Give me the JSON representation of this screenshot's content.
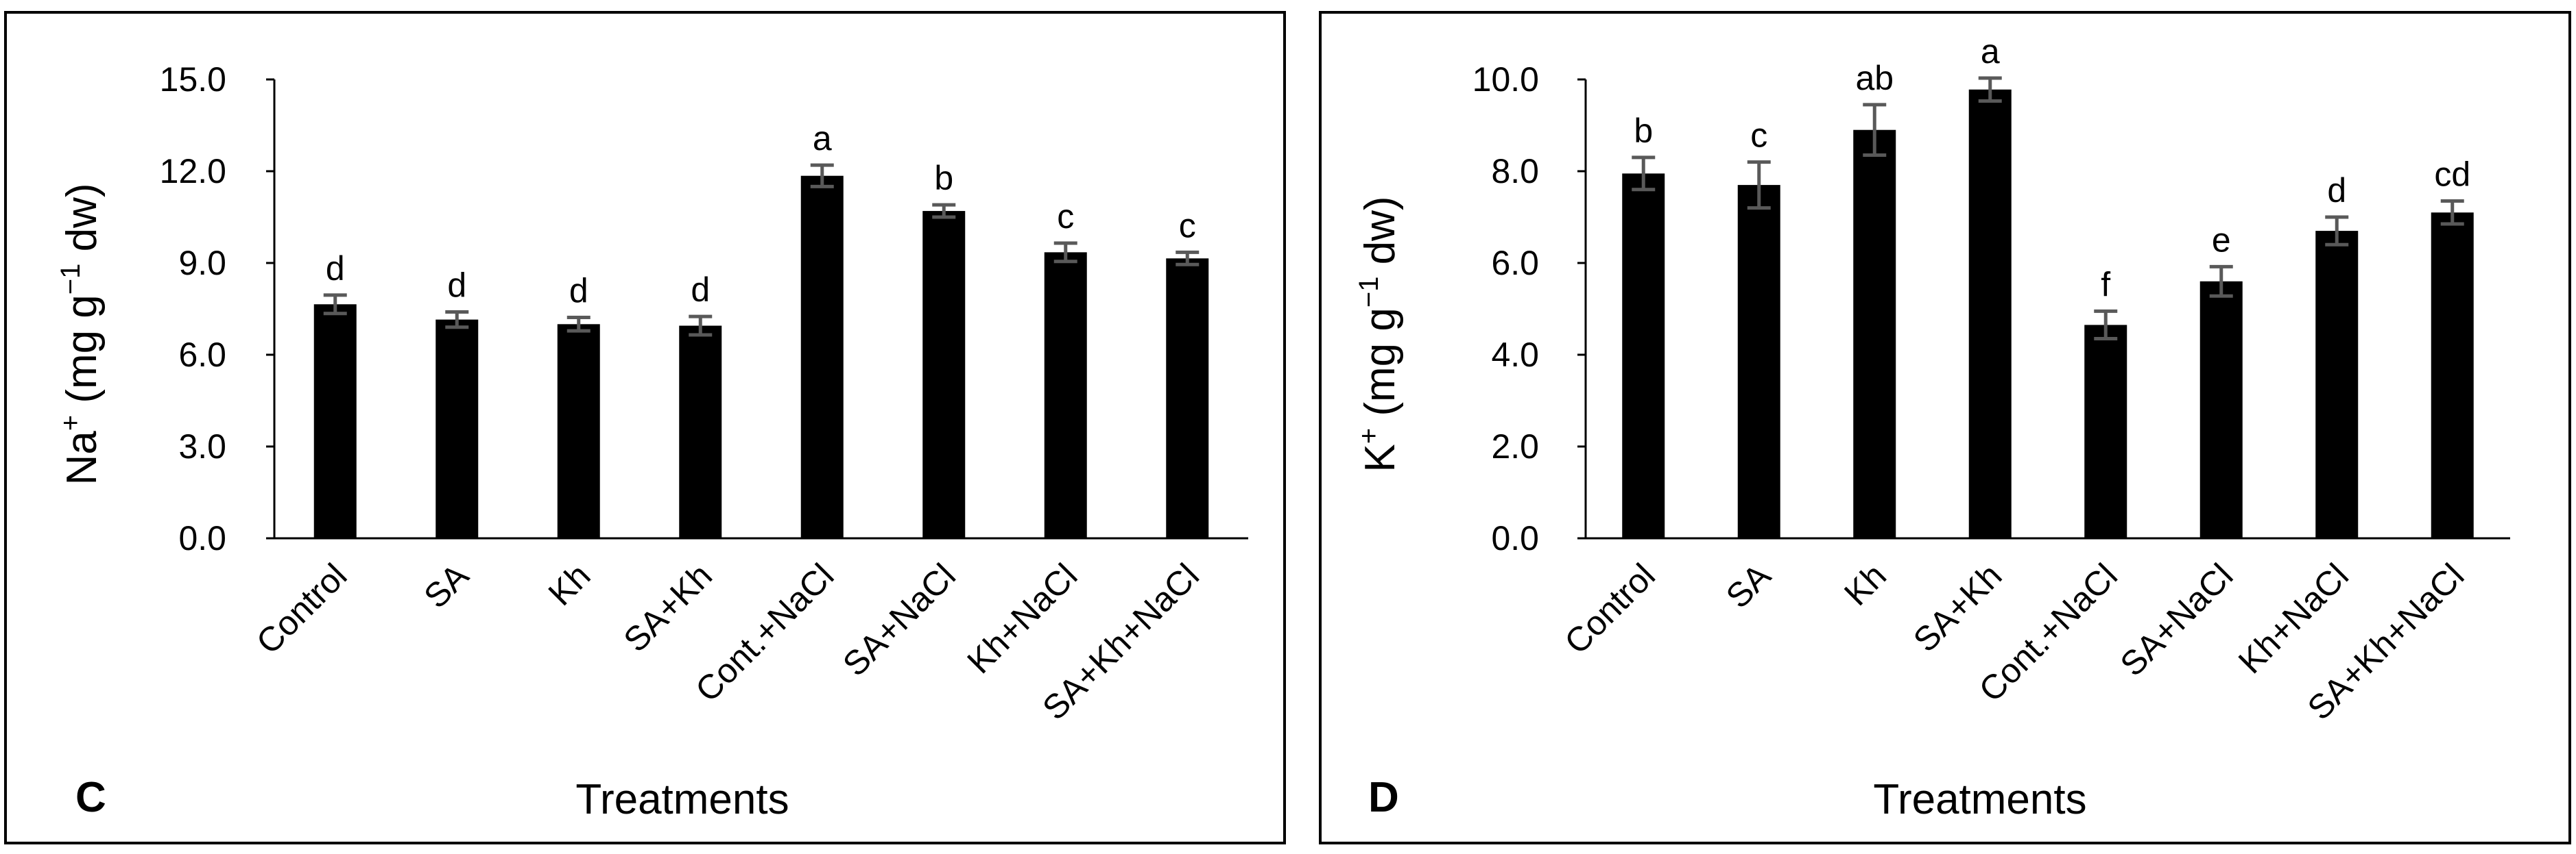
{
  "colors": {
    "bar": "#000000",
    "error_bar": "#595959",
    "axis": "#000000",
    "frame": "#000000",
    "background": "#ffffff"
  },
  "chart_data": [
    {
      "type": "bar",
      "panel_label": "C",
      "title": "",
      "xlabel": "Treatments",
      "ylabel_main": "Na",
      "ylabel_sup1": "+",
      "ylabel_mid": " (mg g",
      "ylabel_sup2": "−1",
      "ylabel_end": " dw)",
      "ylim": [
        0,
        15
      ],
      "yticks": [
        "0.0",
        "3.0",
        "6.0",
        "9.0",
        "12.0",
        "15.0"
      ],
      "ytick_values": [
        0,
        3,
        6,
        9,
        12,
        15
      ],
      "grid": false,
      "categories": [
        "Control",
        "SA",
        "Kh",
        "SA+Kh",
        "Cont.+NaCl",
        "SA+NaCl",
        "Kh+NaCl",
        "SA+Kh+NaCl"
      ],
      "values": [
        7.65,
        7.15,
        7.0,
        6.95,
        11.85,
        10.7,
        9.35,
        9.15
      ],
      "errors": [
        0.3,
        0.25,
        0.22,
        0.3,
        0.35,
        0.2,
        0.3,
        0.2
      ],
      "letters": [
        "d",
        "d",
        "d",
        "d",
        "a",
        "b",
        "c",
        "c"
      ]
    },
    {
      "type": "bar",
      "panel_label": "D",
      "title": "",
      "xlabel": "Treatments",
      "ylabel_main": "K",
      "ylabel_sup1": "+",
      "ylabel_mid": " (mg g",
      "ylabel_sup2": "−1",
      "ylabel_end": " dw)",
      "ylim": [
        0,
        10
      ],
      "yticks": [
        "0.0",
        "2.0",
        "4.0",
        "6.0",
        "8.0",
        "10.0"
      ],
      "ytick_values": [
        0,
        2,
        4,
        6,
        8,
        10
      ],
      "grid": false,
      "categories": [
        "Control",
        "SA",
        "Kh",
        "SA+Kh",
        "Cont.+NaCl",
        "SA+NaCl",
        "Kh+NaCl",
        "SA+Kh+NaCl"
      ],
      "values": [
        7.95,
        7.7,
        8.9,
        9.78,
        4.65,
        5.6,
        6.7,
        7.1
      ],
      "errors": [
        0.35,
        0.5,
        0.55,
        0.25,
        0.3,
        0.32,
        0.3,
        0.25
      ],
      "letters": [
        "b",
        "c",
        "ab",
        "a",
        "f",
        "e",
        "d",
        "cd"
      ]
    }
  ]
}
